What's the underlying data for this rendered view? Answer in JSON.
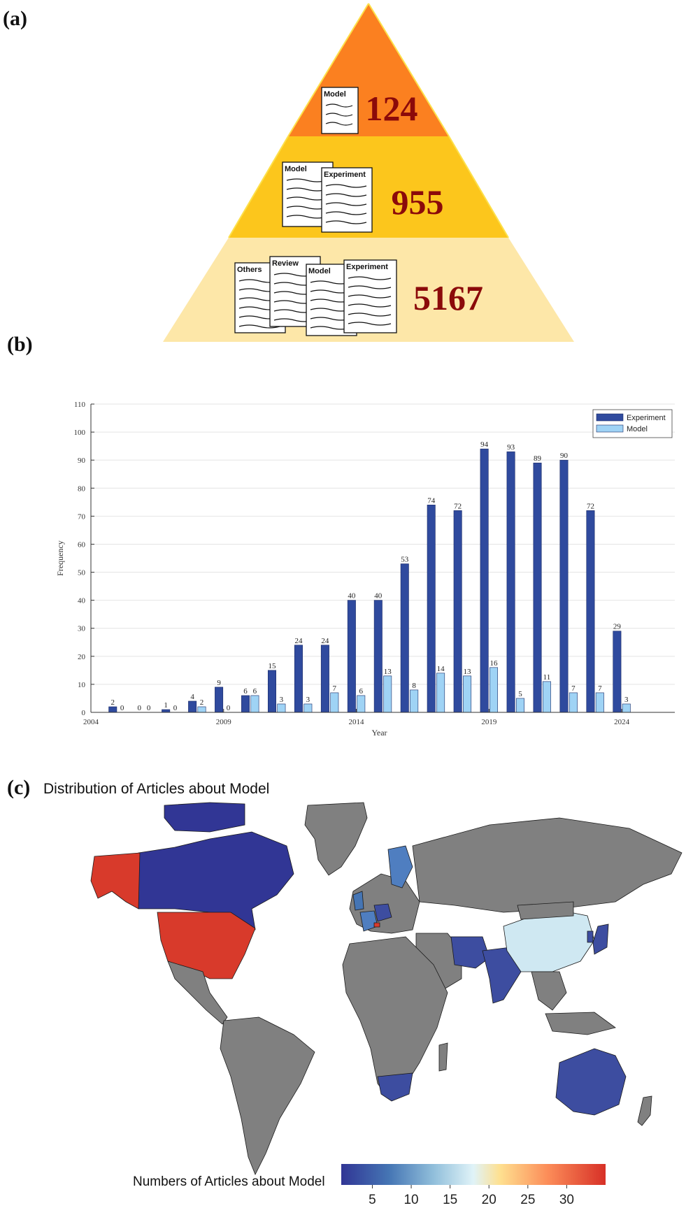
{
  "panel_a": {
    "label": "(a)",
    "tiers": [
      {
        "value": "124",
        "docs": [
          "Model"
        ],
        "color": "#fb8020"
      },
      {
        "value": "955",
        "docs": [
          "Model",
          "Experiment"
        ],
        "color": "#fcc61c"
      },
      {
        "value": "5167",
        "docs": [
          "Others",
          "Review",
          "Model",
          "Experiment"
        ],
        "color": "#fde7a8"
      }
    ],
    "value_color": "#8b0a0a"
  },
  "panel_b": {
    "label": "(b)"
  },
  "chart_data": [
    {
      "type": "bar",
      "xlabel": "Year",
      "ylabel": "Frequency",
      "ylim": [
        0,
        110
      ],
      "yticks": [
        0,
        10,
        20,
        30,
        40,
        50,
        60,
        70,
        80,
        90,
        100,
        110
      ],
      "xlim": [
        2004,
        2026
      ],
      "xticks": [
        2004,
        2009,
        2014,
        2019,
        2024
      ],
      "grid": true,
      "legend_position": "top-right",
      "x": [
        2005,
        2006,
        2007,
        2008,
        2009,
        2010,
        2011,
        2012,
        2013,
        2014,
        2015,
        2016,
        2017,
        2018,
        2019,
        2020,
        2021,
        2022,
        2023,
        2024
      ],
      "series": [
        {
          "name": "Experiment",
          "color": "#2f4a9e",
          "values": [
            2,
            0,
            1,
            4,
            9,
            6,
            15,
            24,
            24,
            40,
            40,
            53,
            74,
            72,
            94,
            93,
            89,
            90,
            72,
            29
          ]
        },
        {
          "name": "Model",
          "color": "#9fd3f5",
          "values": [
            0,
            0,
            0,
            2,
            0,
            6,
            3,
            3,
            7,
            6,
            13,
            8,
            14,
            13,
            16,
            5,
            11,
            7,
            7,
            3
          ]
        }
      ]
    }
  ],
  "panel_c": {
    "label": "(c)",
    "title": "Distribution of Articles about Model",
    "colorbar_label": "Numbers of Articles about Model",
    "colorbar_ticks": [
      "5",
      "10",
      "15",
      "20",
      "25",
      "30"
    ],
    "colorbar_range": [
      1,
      35
    ],
    "colors": {
      "no_data": "#808080",
      "ocean": "#ffffff",
      "low": "#313695",
      "mid": "#fbfbc9",
      "high": "#d83a2b"
    }
  }
}
